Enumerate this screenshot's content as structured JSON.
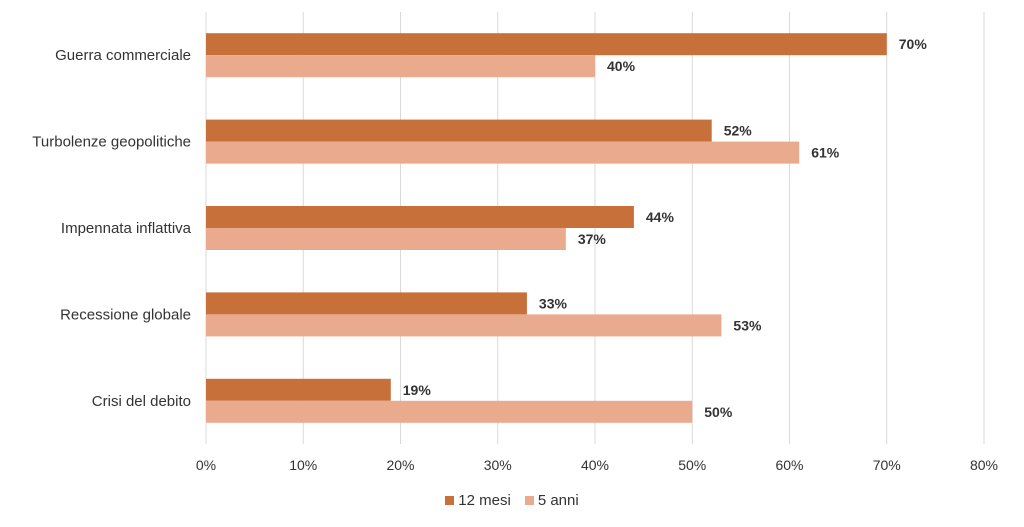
{
  "chart_data": {
    "type": "bar",
    "orientation": "horizontal",
    "categories": [
      "Guerra commerciale",
      "Turbolenze geopolitiche",
      "Impennata inflattiva",
      "Recessione globale",
      "Crisi del debito"
    ],
    "series": [
      {
        "name": "12 mesi",
        "color": "#C8703A",
        "values": [
          70,
          52,
          44,
          33,
          19
        ],
        "labels": [
          "70%",
          "52%",
          "44%",
          "33%",
          "19%"
        ]
      },
      {
        "name": "5 anni",
        "color": "#EAAA8E",
        "values": [
          40,
          61,
          37,
          53,
          50
        ],
        "labels": [
          "40%",
          "61%",
          "37%",
          "53%",
          "50%"
        ]
      }
    ],
    "x_ticks": [
      "0%",
      "10%",
      "20%",
      "30%",
      "40%",
      "50%",
      "60%",
      "70%",
      "80%"
    ],
    "xlim": [
      0,
      80
    ],
    "grid": "vertical",
    "legend_position": "bottom"
  }
}
